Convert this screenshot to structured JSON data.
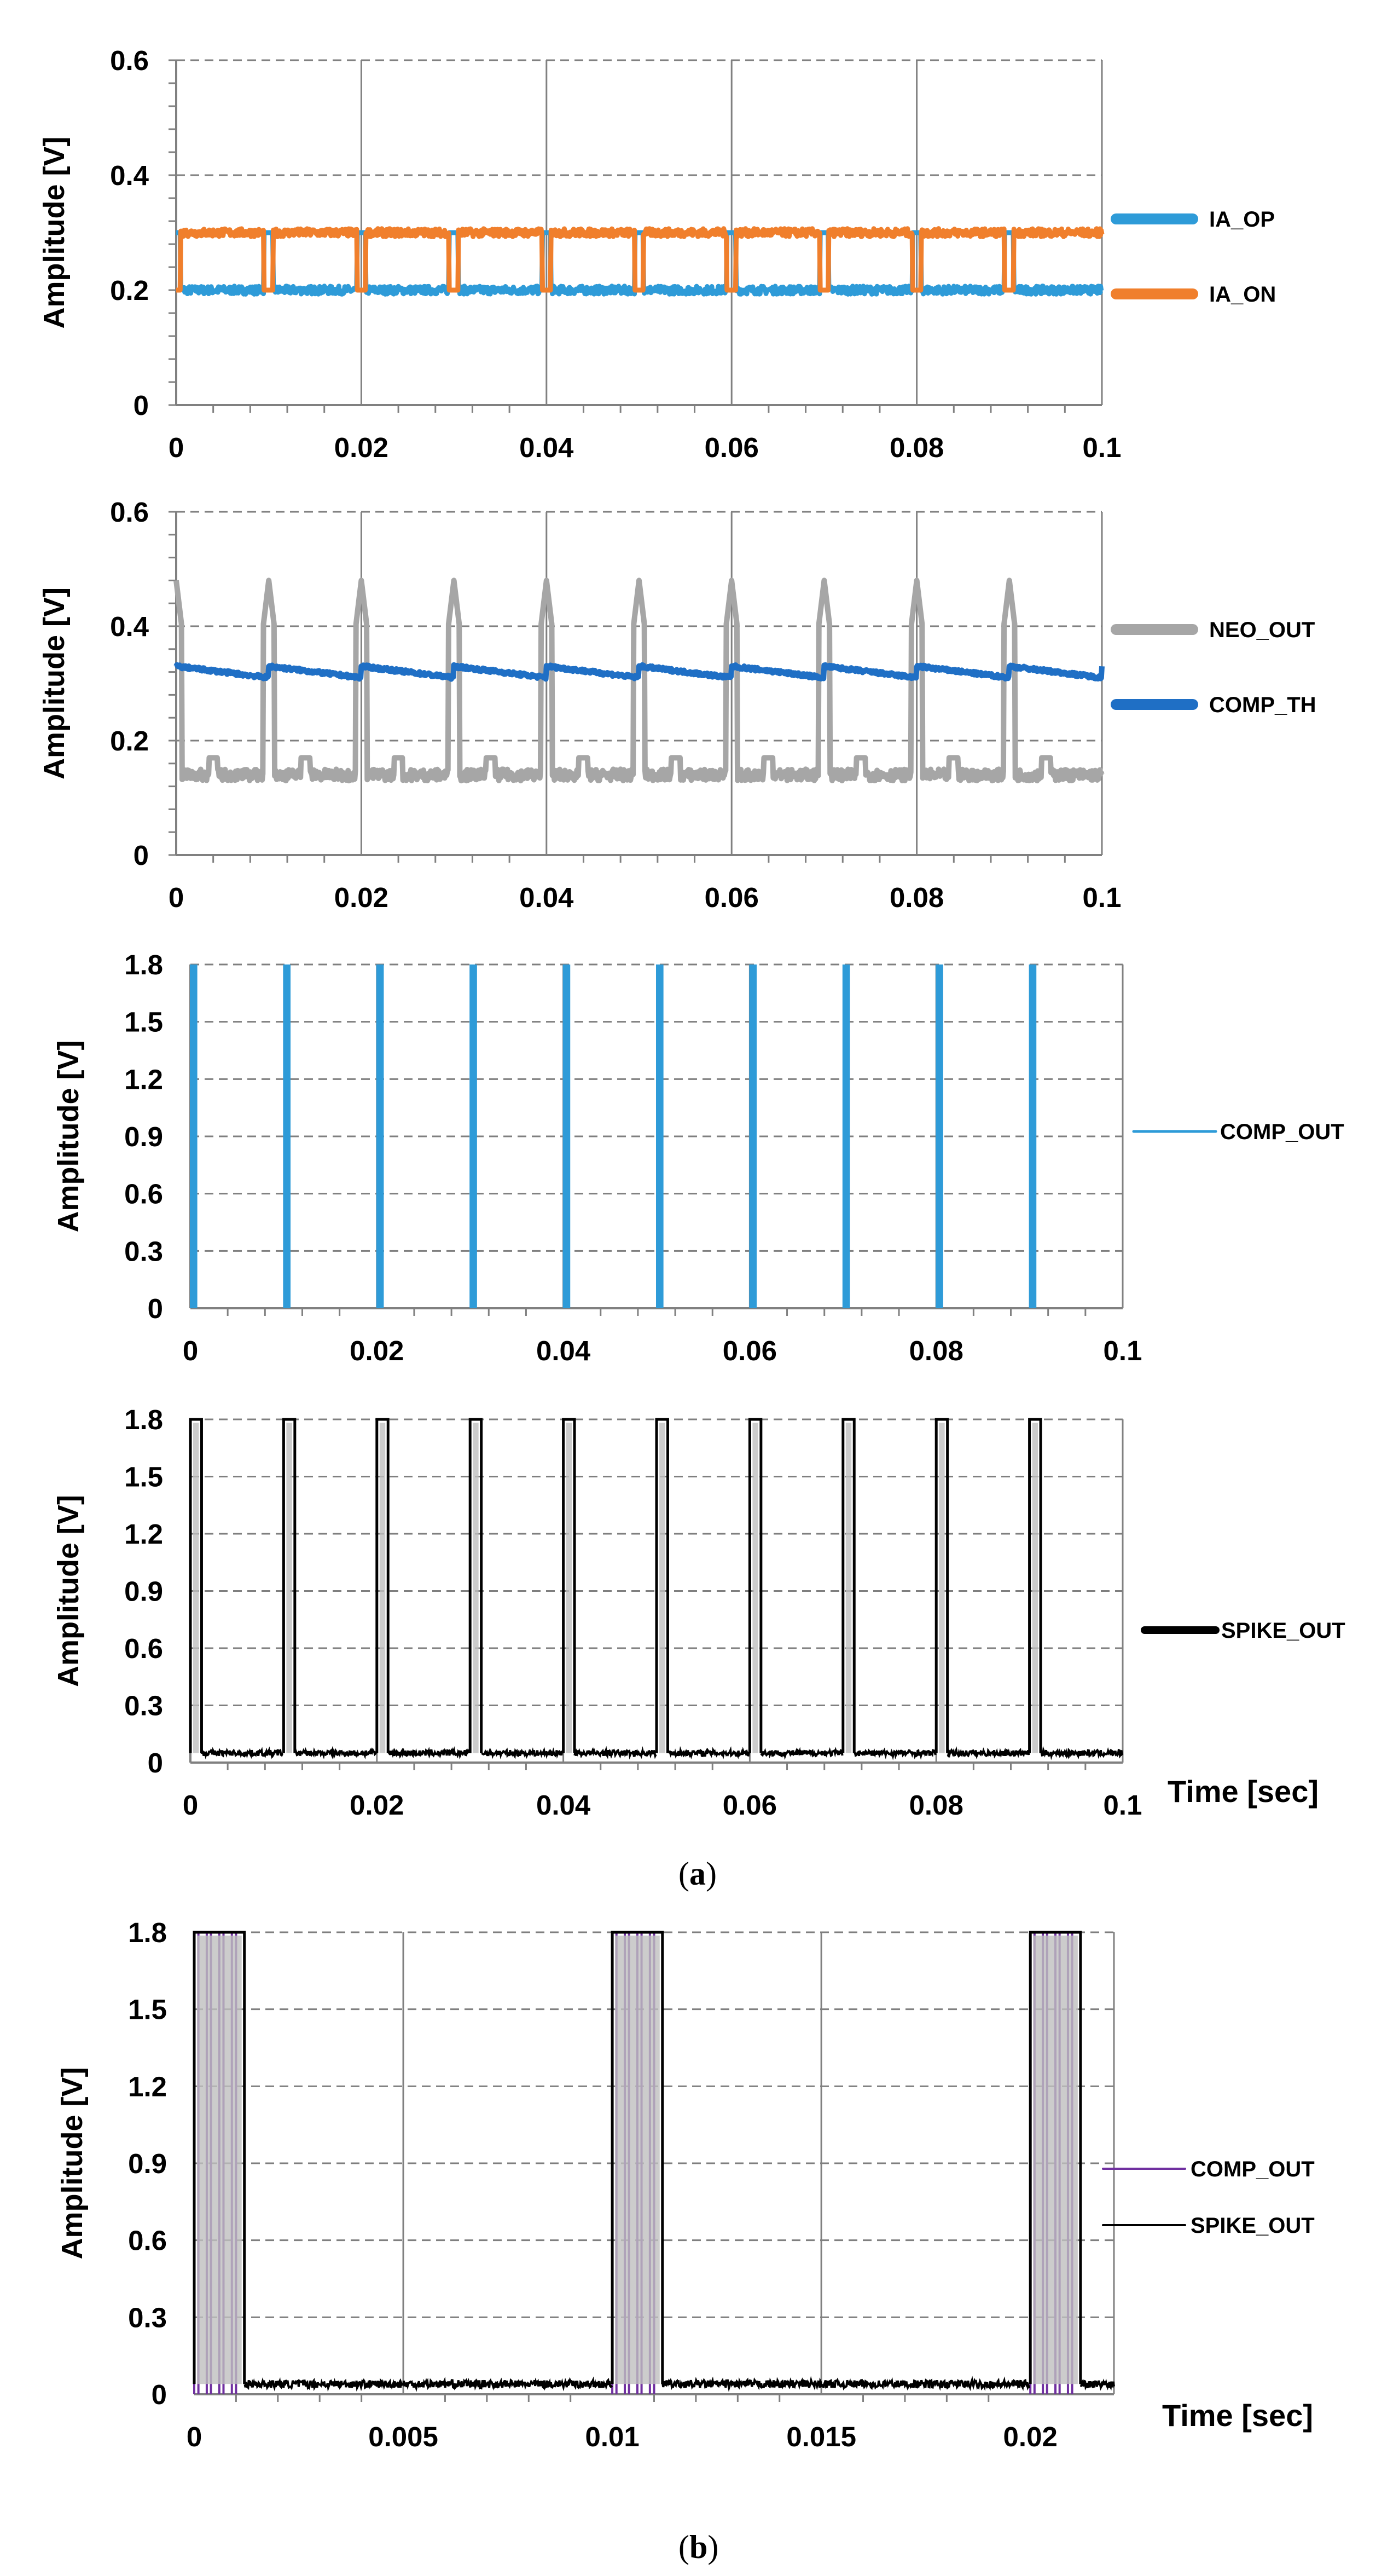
{
  "captions": {
    "a": "a",
    "b": "b"
  },
  "chart_data": [
    {
      "id": "a1",
      "type": "line",
      "title": "",
      "xlabel": "",
      "ylabel": "Amplitude [V]",
      "xlim": [
        0,
        0.1
      ],
      "ylim": [
        0,
        0.6
      ],
      "xticks": [
        "0",
        "0.02",
        "0.04",
        "0.06",
        "0.08",
        "0.1"
      ],
      "yticks": [
        "0",
        "0.2",
        "0.4",
        "0.6"
      ],
      "ytick_values": [
        0,
        0.2,
        0.4,
        0.6
      ],
      "minor_y_ticks": true,
      "grid": "vertical solid, horizontal dashed",
      "legend": "right",
      "series": [
        {
          "name": "IA_OP",
          "color": "#2e9bd8",
          "shape": "dipline",
          "base": 0.2,
          "level": 0.3,
          "spike_times": [
            0,
            0.01,
            0.02,
            0.03,
            0.04,
            0.05,
            0.06,
            0.07,
            0.08,
            0.09
          ],
          "spike_width": 0.0005
        },
        {
          "name": "IA_ON",
          "color": "#f07f2c",
          "shape": "dipline",
          "base": 0.3,
          "level": 0.2,
          "spike_times": [
            0,
            0.01,
            0.02,
            0.03,
            0.04,
            0.05,
            0.06,
            0.07,
            0.08,
            0.09
          ],
          "spike_width": 0.0005
        }
      ]
    },
    {
      "id": "a2",
      "type": "line",
      "title": "",
      "xlabel": "",
      "ylabel": "Amplitude [V]",
      "xlim": [
        0,
        0.1
      ],
      "ylim": [
        0,
        0.6
      ],
      "xticks": [
        "0",
        "0.02",
        "0.04",
        "0.06",
        "0.08",
        "0.1"
      ],
      "yticks": [
        "0",
        "0.2",
        "0.4",
        "0.6"
      ],
      "ytick_values": [
        0,
        0.2,
        0.4,
        0.6
      ],
      "minor_y_ticks": true,
      "grid": "vertical solid, horizontal dashed",
      "legend": "right",
      "series": [
        {
          "name": "NEO_OUT",
          "color": "#a6a6a6",
          "shape": "spikeline",
          "base": 0.14,
          "peak": 0.48,
          "spike_times": [
            0,
            0.01,
            0.02,
            0.03,
            0.04,
            0.05,
            0.06,
            0.07,
            0.08,
            0.09
          ],
          "spike_width": 0.0006
        },
        {
          "name": "COMP_TH",
          "color": "#1f6fc5",
          "shape": "sawtooth",
          "peak": 0.33,
          "decay_to": 0.31,
          "spike_times": [
            0,
            0.01,
            0.02,
            0.03,
            0.04,
            0.05,
            0.06,
            0.07,
            0.08,
            0.09
          ]
        }
      ]
    },
    {
      "id": "a3",
      "type": "line",
      "title": "",
      "xlabel": "",
      "ylabel": "Amplitude [V]",
      "xlim": [
        0,
        0.1
      ],
      "ylim": [
        0,
        1.8
      ],
      "xticks": [
        "0",
        "0.02",
        "0.04",
        "0.06",
        "0.08",
        "0.1"
      ],
      "yticks": [
        "0",
        "0.3",
        "0.6",
        "0.9",
        "1.2",
        "1.5",
        "1.8"
      ],
      "ytick_values": [
        0,
        0.3,
        0.6,
        0.9,
        1.2,
        1.5,
        1.8
      ],
      "minor_y_ticks": false,
      "grid": "vertical solid, horizontal dashed",
      "legend": "right",
      "series": [
        {
          "name": "COMP_OUT",
          "color": "#2e9bd8",
          "shape": "pulses",
          "low": 0,
          "high": 1.8,
          "pulse_times": [
            0,
            0.01,
            0.02,
            0.03,
            0.04,
            0.05,
            0.06,
            0.07,
            0.08,
            0.09
          ],
          "pulse_width": 0.0008
        }
      ]
    },
    {
      "id": "a4",
      "type": "line",
      "title": "",
      "xlabel": "Time [sec]",
      "ylabel": "Amplitude [V]",
      "xlim": [
        0,
        0.1
      ],
      "ylim": [
        0,
        1.8
      ],
      "xticks": [
        "0",
        "0.02",
        "0.04",
        "0.06",
        "0.08",
        "0.1"
      ],
      "yticks": [
        "0",
        "0.3",
        "0.6",
        "0.9",
        "1.2",
        "1.5",
        "1.8"
      ],
      "ytick_values": [
        0,
        0.3,
        0.6,
        0.9,
        1.2,
        1.5,
        1.8
      ],
      "minor_y_ticks": false,
      "grid": "vertical solid, horizontal dashed",
      "legend": "right",
      "series": [
        {
          "name": "SPIKE_OUT",
          "color": "#000000",
          "shape": "pulses",
          "low": 0.05,
          "high": 1.8,
          "pulse_times": [
            0,
            0.01,
            0.02,
            0.03,
            0.04,
            0.05,
            0.06,
            0.07,
            0.08,
            0.09
          ],
          "pulse_width": 0.0012
        }
      ]
    },
    {
      "id": "b",
      "type": "line",
      "title": "",
      "xlabel": "Time [sec]",
      "ylabel": "Amplitude [V]",
      "xlim": [
        0,
        0.022
      ],
      "ylim": [
        0,
        1.8
      ],
      "xticks": [
        "0",
        "0.005",
        "0.01",
        "0.015",
        "0.02"
      ],
      "xtick_values": [
        0,
        0.005,
        0.01,
        0.015,
        0.02
      ],
      "yticks": [
        "0",
        "0.3",
        "0.6",
        "0.9",
        "1.2",
        "1.5",
        "1.8"
      ],
      "ytick_values": [
        0,
        0.3,
        0.6,
        0.9,
        1.2,
        1.5,
        1.8
      ],
      "minor_y_ticks": false,
      "grid": "vertical solid, horizontal dashed",
      "legend": "right",
      "series": [
        {
          "name": "COMP_OUT",
          "color": "#7030a0",
          "shape": "bursts",
          "low": 0,
          "high": 1.8,
          "burst_starts": [
            0,
            0.01,
            0.02
          ],
          "burst_pulse_offsets": [
            0,
            0.0003,
            0.0006,
            0.0009
          ],
          "burst_pulse_width": 0.0001
        },
        {
          "name": "SPIKE_OUT",
          "color": "#000000",
          "shape": "pulses",
          "low": 0.04,
          "high": 1.8,
          "pulse_times": [
            0,
            0.01,
            0.02
          ],
          "pulse_width": 0.0012
        }
      ]
    }
  ]
}
